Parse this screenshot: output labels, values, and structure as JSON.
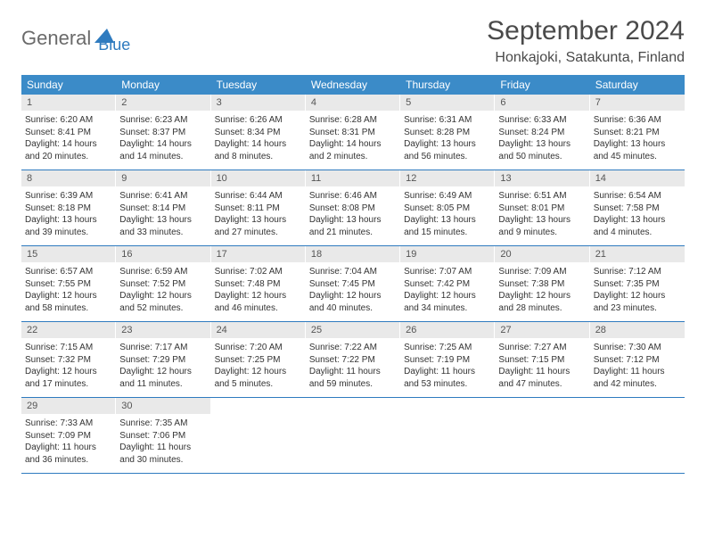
{
  "logo": {
    "general": "General",
    "blue": "Blue"
  },
  "title": "September 2024",
  "location": "Honkajoki, Satakunta, Finland",
  "colors": {
    "header_bg": "#3b8bc8",
    "header_text": "#ffffff",
    "daynum_bg": "#e9e9e9",
    "border": "#2f7bbf",
    "text": "#333333",
    "logo_gray": "#6a6a6a",
    "logo_blue": "#2f7bbf"
  },
  "dow": [
    "Sunday",
    "Monday",
    "Tuesday",
    "Wednesday",
    "Thursday",
    "Friday",
    "Saturday"
  ],
  "days": [
    {
      "n": "1",
      "sr": "6:20 AM",
      "ss": "8:41 PM",
      "dl": "14 hours and 20 minutes."
    },
    {
      "n": "2",
      "sr": "6:23 AM",
      "ss": "8:37 PM",
      "dl": "14 hours and 14 minutes."
    },
    {
      "n": "3",
      "sr": "6:26 AM",
      "ss": "8:34 PM",
      "dl": "14 hours and 8 minutes."
    },
    {
      "n": "4",
      "sr": "6:28 AM",
      "ss": "8:31 PM",
      "dl": "14 hours and 2 minutes."
    },
    {
      "n": "5",
      "sr": "6:31 AM",
      "ss": "8:28 PM",
      "dl": "13 hours and 56 minutes."
    },
    {
      "n": "6",
      "sr": "6:33 AM",
      "ss": "8:24 PM",
      "dl": "13 hours and 50 minutes."
    },
    {
      "n": "7",
      "sr": "6:36 AM",
      "ss": "8:21 PM",
      "dl": "13 hours and 45 minutes."
    },
    {
      "n": "8",
      "sr": "6:39 AM",
      "ss": "8:18 PM",
      "dl": "13 hours and 39 minutes."
    },
    {
      "n": "9",
      "sr": "6:41 AM",
      "ss": "8:14 PM",
      "dl": "13 hours and 33 minutes."
    },
    {
      "n": "10",
      "sr": "6:44 AM",
      "ss": "8:11 PM",
      "dl": "13 hours and 27 minutes."
    },
    {
      "n": "11",
      "sr": "6:46 AM",
      "ss": "8:08 PM",
      "dl": "13 hours and 21 minutes."
    },
    {
      "n": "12",
      "sr": "6:49 AM",
      "ss": "8:05 PM",
      "dl": "13 hours and 15 minutes."
    },
    {
      "n": "13",
      "sr": "6:51 AM",
      "ss": "8:01 PM",
      "dl": "13 hours and 9 minutes."
    },
    {
      "n": "14",
      "sr": "6:54 AM",
      "ss": "7:58 PM",
      "dl": "13 hours and 4 minutes."
    },
    {
      "n": "15",
      "sr": "6:57 AM",
      "ss": "7:55 PM",
      "dl": "12 hours and 58 minutes."
    },
    {
      "n": "16",
      "sr": "6:59 AM",
      "ss": "7:52 PM",
      "dl": "12 hours and 52 minutes."
    },
    {
      "n": "17",
      "sr": "7:02 AM",
      "ss": "7:48 PM",
      "dl": "12 hours and 46 minutes."
    },
    {
      "n": "18",
      "sr": "7:04 AM",
      "ss": "7:45 PM",
      "dl": "12 hours and 40 minutes."
    },
    {
      "n": "19",
      "sr": "7:07 AM",
      "ss": "7:42 PM",
      "dl": "12 hours and 34 minutes."
    },
    {
      "n": "20",
      "sr": "7:09 AM",
      "ss": "7:38 PM",
      "dl": "12 hours and 28 minutes."
    },
    {
      "n": "21",
      "sr": "7:12 AM",
      "ss": "7:35 PM",
      "dl": "12 hours and 23 minutes."
    },
    {
      "n": "22",
      "sr": "7:15 AM",
      "ss": "7:32 PM",
      "dl": "12 hours and 17 minutes."
    },
    {
      "n": "23",
      "sr": "7:17 AM",
      "ss": "7:29 PM",
      "dl": "12 hours and 11 minutes."
    },
    {
      "n": "24",
      "sr": "7:20 AM",
      "ss": "7:25 PM",
      "dl": "12 hours and 5 minutes."
    },
    {
      "n": "25",
      "sr": "7:22 AM",
      "ss": "7:22 PM",
      "dl": "11 hours and 59 minutes."
    },
    {
      "n": "26",
      "sr": "7:25 AM",
      "ss": "7:19 PM",
      "dl": "11 hours and 53 minutes."
    },
    {
      "n": "27",
      "sr": "7:27 AM",
      "ss": "7:15 PM",
      "dl": "11 hours and 47 minutes."
    },
    {
      "n": "28",
      "sr": "7:30 AM",
      "ss": "7:12 PM",
      "dl": "11 hours and 42 minutes."
    },
    {
      "n": "29",
      "sr": "7:33 AM",
      "ss": "7:09 PM",
      "dl": "11 hours and 36 minutes."
    },
    {
      "n": "30",
      "sr": "7:35 AM",
      "ss": "7:06 PM",
      "dl": "11 hours and 30 minutes."
    }
  ],
  "labels": {
    "sunrise": "Sunrise: ",
    "sunset": "Sunset: ",
    "daylight": "Daylight: "
  }
}
